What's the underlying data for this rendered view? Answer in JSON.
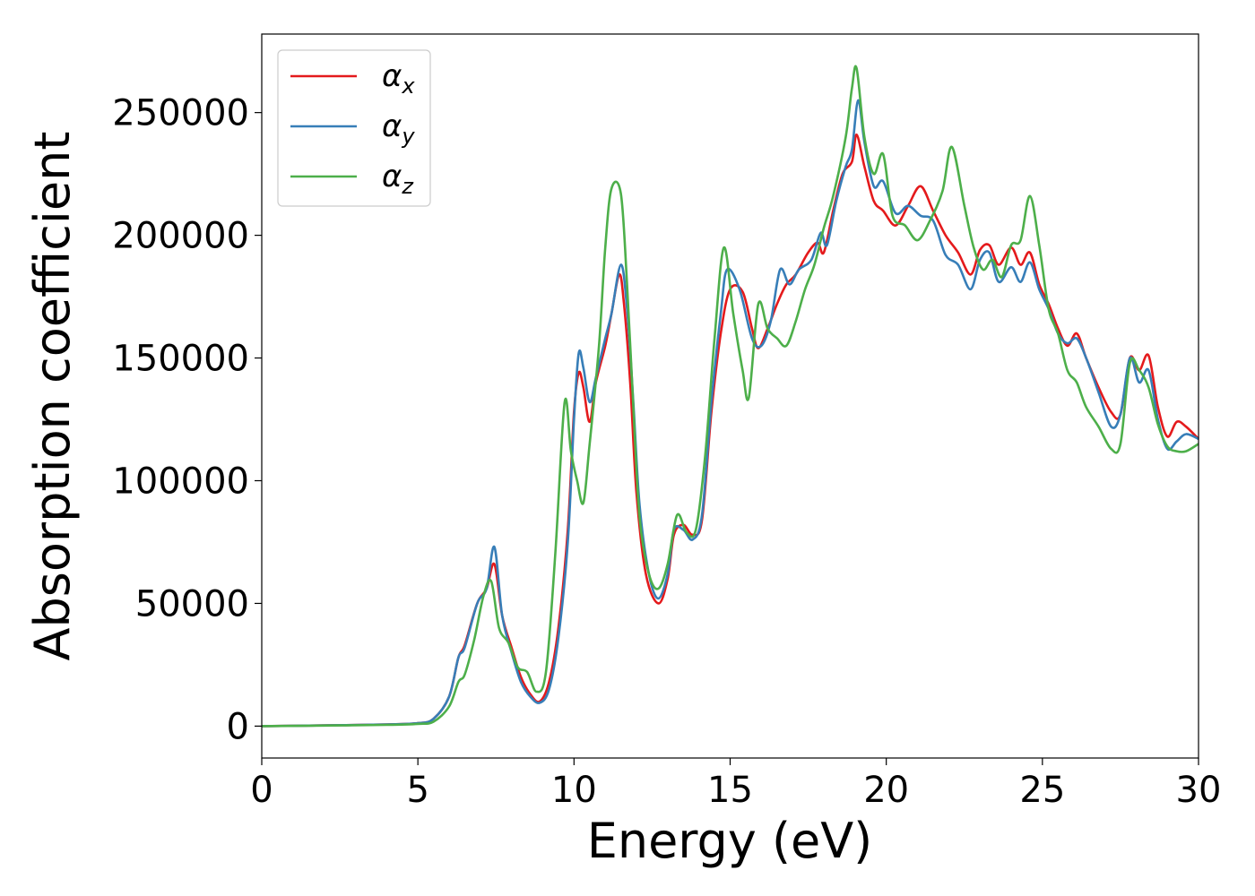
{
  "chart_data": {
    "type": "line",
    "title": "",
    "xlabel": "Energy (eV)",
    "ylabel": "Absorption coefficient",
    "xlim": [
      0,
      30
    ],
    "ylim": [
      -13000,
      282000
    ],
    "xticks": [
      0,
      5,
      10,
      15,
      20,
      25,
      30
    ],
    "xtick_labels": [
      "0",
      "5",
      "10",
      "15",
      "20",
      "25",
      "30"
    ],
    "yticks": [
      0,
      50000,
      100000,
      150000,
      200000,
      250000
    ],
    "ytick_labels": [
      "0",
      "50000",
      "100000",
      "150000",
      "200000",
      "250000"
    ],
    "grid": false,
    "legend_position": "top-left",
    "series": [
      {
        "name": "αx",
        "legend_main": "α",
        "legend_sub": "x",
        "color": "#e41a1c",
        "points": [
          [
            0,
            0
          ],
          [
            2,
            300
          ],
          [
            4,
            700
          ],
          [
            5,
            1200
          ],
          [
            5.5,
            3000
          ],
          [
            6,
            12000
          ],
          [
            6.3,
            28000
          ],
          [
            6.5,
            33000
          ],
          [
            6.9,
            50000
          ],
          [
            7.2,
            56000
          ],
          [
            7.45,
            66000
          ],
          [
            7.7,
            45000
          ],
          [
            8,
            32000
          ],
          [
            8.3,
            20000
          ],
          [
            8.6,
            13000
          ],
          [
            8.9,
            10000
          ],
          [
            9.2,
            18000
          ],
          [
            9.5,
            40000
          ],
          [
            9.8,
            80000
          ],
          [
            10,
            128000
          ],
          [
            10.15,
            144000
          ],
          [
            10.3,
            138000
          ],
          [
            10.5,
            124000
          ],
          [
            10.7,
            140000
          ],
          [
            11,
            155000
          ],
          [
            11.2,
            168000
          ],
          [
            11.45,
            184000
          ],
          [
            11.6,
            172000
          ],
          [
            11.8,
            140000
          ],
          [
            12,
            95000
          ],
          [
            12.3,
            62000
          ],
          [
            12.7,
            50000
          ],
          [
            13,
            60000
          ],
          [
            13.2,
            78000
          ],
          [
            13.5,
            82000
          ],
          [
            13.8,
            78000
          ],
          [
            14.1,
            84000
          ],
          [
            14.4,
            128000
          ],
          [
            14.7,
            160000
          ],
          [
            15,
            178000
          ],
          [
            15.4,
            177000
          ],
          [
            15.7,
            162000
          ],
          [
            15.9,
            154000
          ],
          [
            16.2,
            162000
          ],
          [
            16.5,
            172000
          ],
          [
            16.8,
            180000
          ],
          [
            17.1,
            184000
          ],
          [
            17.5,
            193000
          ],
          [
            17.8,
            197000
          ],
          [
            18,
            193000
          ],
          [
            18.3,
            210000
          ],
          [
            18.6,
            225000
          ],
          [
            18.9,
            230000
          ],
          [
            19.05,
            241000
          ],
          [
            19.3,
            228000
          ],
          [
            19.6,
            214000
          ],
          [
            19.9,
            210000
          ],
          [
            20.3,
            204000
          ],
          [
            20.7,
            212000
          ],
          [
            21.1,
            220000
          ],
          [
            21.5,
            210000
          ],
          [
            21.9,
            200000
          ],
          [
            22.3,
            193000
          ],
          [
            22.7,
            184000
          ],
          [
            23,
            194000
          ],
          [
            23.3,
            196000
          ],
          [
            23.6,
            188000
          ],
          [
            24,
            195000
          ],
          [
            24.3,
            188000
          ],
          [
            24.6,
            193000
          ],
          [
            24.9,
            180000
          ],
          [
            25.2,
            172000
          ],
          [
            25.5,
            162000
          ],
          [
            25.8,
            155000
          ],
          [
            26.1,
            160000
          ],
          [
            26.4,
            150000
          ],
          [
            26.8,
            138000
          ],
          [
            27.2,
            128000
          ],
          [
            27.5,
            127000
          ],
          [
            27.8,
            150000
          ],
          [
            28.1,
            145000
          ],
          [
            28.4,
            151000
          ],
          [
            28.7,
            130000
          ],
          [
            29,
            118000
          ],
          [
            29.3,
            124000
          ],
          [
            29.6,
            122000
          ],
          [
            30,
            117000
          ]
        ]
      },
      {
        "name": "αy",
        "legend_main": "α",
        "legend_sub": "y",
        "color": "#377eb8",
        "points": [
          [
            0,
            0
          ],
          [
            2,
            300
          ],
          [
            4,
            700
          ],
          [
            5,
            1200
          ],
          [
            5.5,
            3000
          ],
          [
            6,
            12000
          ],
          [
            6.3,
            28000
          ],
          [
            6.5,
            32000
          ],
          [
            6.9,
            50000
          ],
          [
            7.2,
            56000
          ],
          [
            7.45,
            73000
          ],
          [
            7.7,
            45000
          ],
          [
            8,
            30000
          ],
          [
            8.3,
            18000
          ],
          [
            8.6,
            12000
          ],
          [
            8.9,
            9500
          ],
          [
            9.2,
            15000
          ],
          [
            9.5,
            36000
          ],
          [
            9.8,
            75000
          ],
          [
            10,
            125000
          ],
          [
            10.15,
            152000
          ],
          [
            10.3,
            146000
          ],
          [
            10.5,
            132000
          ],
          [
            10.7,
            142000
          ],
          [
            11,
            158000
          ],
          [
            11.2,
            168000
          ],
          [
            11.5,
            188000
          ],
          [
            11.7,
            170000
          ],
          [
            11.9,
            132000
          ],
          [
            12.1,
            90000
          ],
          [
            12.4,
            62000
          ],
          [
            12.7,
            52000
          ],
          [
            13,
            62000
          ],
          [
            13.2,
            80000
          ],
          [
            13.5,
            80000
          ],
          [
            13.8,
            76000
          ],
          [
            14.1,
            86000
          ],
          [
            14.4,
            132000
          ],
          [
            14.7,
            168000
          ],
          [
            14.9,
            186000
          ],
          [
            15.3,
            178000
          ],
          [
            15.7,
            158000
          ],
          [
            16,
            155000
          ],
          [
            16.3,
            165000
          ],
          [
            16.6,
            186000
          ],
          [
            16.9,
            180000
          ],
          [
            17.2,
            186000
          ],
          [
            17.6,
            190000
          ],
          [
            17.9,
            201000
          ],
          [
            18.1,
            196000
          ],
          [
            18.4,
            214000
          ],
          [
            18.7,
            228000
          ],
          [
            18.9,
            235000
          ],
          [
            19.1,
            255000
          ],
          [
            19.3,
            238000
          ],
          [
            19.6,
            220000
          ],
          [
            19.9,
            222000
          ],
          [
            20.3,
            209000
          ],
          [
            20.7,
            212000
          ],
          [
            21.1,
            208000
          ],
          [
            21.5,
            206000
          ],
          [
            21.9,
            192000
          ],
          [
            22.3,
            188000
          ],
          [
            22.7,
            178000
          ],
          [
            23,
            190000
          ],
          [
            23.3,
            193000
          ],
          [
            23.6,
            181000
          ],
          [
            24,
            187000
          ],
          [
            24.3,
            181000
          ],
          [
            24.6,
            189000
          ],
          [
            24.9,
            178000
          ],
          [
            25.2,
            170000
          ],
          [
            25.5,
            160000
          ],
          [
            25.8,
            156000
          ],
          [
            26.1,
            158000
          ],
          [
            26.4,
            150000
          ],
          [
            26.8,
            136000
          ],
          [
            27.2,
            122000
          ],
          [
            27.5,
            127000
          ],
          [
            27.8,
            150000
          ],
          [
            28.1,
            140000
          ],
          [
            28.4,
            145000
          ],
          [
            28.7,
            125000
          ],
          [
            29,
            113000
          ],
          [
            29.3,
            116000
          ],
          [
            29.6,
            119000
          ],
          [
            30,
            117000
          ]
        ]
      },
      {
        "name": "αz",
        "legend_main": "α",
        "legend_sub": "z",
        "color": "#4daf4a",
        "points": [
          [
            0,
            0
          ],
          [
            2,
            200
          ],
          [
            4,
            500
          ],
          [
            5,
            900
          ],
          [
            5.5,
            1800
          ],
          [
            6,
            8000
          ],
          [
            6.3,
            18000
          ],
          [
            6.5,
            21000
          ],
          [
            6.8,
            35000
          ],
          [
            7.1,
            53000
          ],
          [
            7.35,
            59000
          ],
          [
            7.6,
            40000
          ],
          [
            7.9,
            34000
          ],
          [
            8.2,
            24000
          ],
          [
            8.5,
            22000
          ],
          [
            8.8,
            14000
          ],
          [
            9.1,
            22000
          ],
          [
            9.4,
            70000
          ],
          [
            9.7,
            132000
          ],
          [
            9.9,
            112000
          ],
          [
            10.1,
            100000
          ],
          [
            10.3,
            91000
          ],
          [
            10.5,
            115000
          ],
          [
            10.8,
            155000
          ],
          [
            11,
            195000
          ],
          [
            11.2,
            219000
          ],
          [
            11.5,
            217000
          ],
          [
            11.7,
            180000
          ],
          [
            11.9,
            130000
          ],
          [
            12.1,
            85000
          ],
          [
            12.4,
            62000
          ],
          [
            12.7,
            56000
          ],
          [
            13,
            66000
          ],
          [
            13.3,
            86000
          ],
          [
            13.6,
            79000
          ],
          [
            13.9,
            80000
          ],
          [
            14.2,
            110000
          ],
          [
            14.5,
            158000
          ],
          [
            14.8,
            195000
          ],
          [
            15.1,
            168000
          ],
          [
            15.4,
            145000
          ],
          [
            15.6,
            134000
          ],
          [
            15.9,
            172000
          ],
          [
            16.2,
            162000
          ],
          [
            16.5,
            158000
          ],
          [
            16.8,
            155000
          ],
          [
            17.1,
            165000
          ],
          [
            17.4,
            178000
          ],
          [
            17.7,
            188000
          ],
          [
            18,
            203000
          ],
          [
            18.3,
            216000
          ],
          [
            18.7,
            240000
          ],
          [
            18.9,
            260000
          ],
          [
            19.05,
            268000
          ],
          [
            19.3,
            240000
          ],
          [
            19.6,
            225000
          ],
          [
            19.9,
            233000
          ],
          [
            20.2,
            208000
          ],
          [
            20.6,
            204000
          ],
          [
            21,
            198000
          ],
          [
            21.4,
            206000
          ],
          [
            21.8,
            218000
          ],
          [
            22.1,
            236000
          ],
          [
            22.5,
            212000
          ],
          [
            22.8,
            195000
          ],
          [
            23.1,
            186000
          ],
          [
            23.4,
            190000
          ],
          [
            23.7,
            183000
          ],
          [
            24,
            196000
          ],
          [
            24.3,
            198000
          ],
          [
            24.6,
            216000
          ],
          [
            24.9,
            196000
          ],
          [
            25.2,
            170000
          ],
          [
            25.5,
            160000
          ],
          [
            25.8,
            145000
          ],
          [
            26.1,
            140000
          ],
          [
            26.4,
            130000
          ],
          [
            26.8,
            122000
          ],
          [
            27.2,
            113000
          ],
          [
            27.5,
            115000
          ],
          [
            27.8,
            148000
          ],
          [
            28.1,
            145000
          ],
          [
            28.4,
            138000
          ],
          [
            28.7,
            123000
          ],
          [
            29,
            114000
          ],
          [
            29.3,
            112000
          ],
          [
            29.6,
            112000
          ],
          [
            30,
            115000
          ]
        ]
      }
    ]
  }
}
